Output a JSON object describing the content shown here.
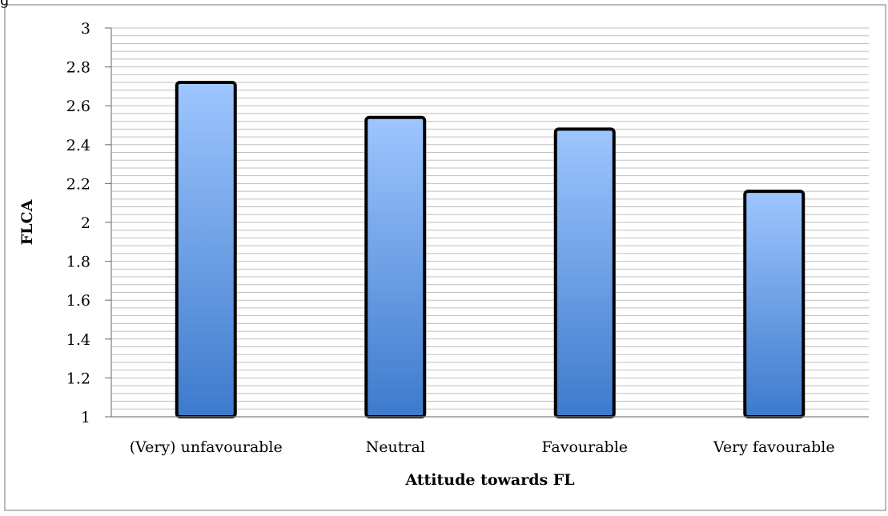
{
  "top_fragment": "g",
  "chart_data": {
    "type": "bar",
    "categories": [
      "(Very) unfavourable",
      "Neutral",
      "Favourable",
      "Very favourable"
    ],
    "values": [
      2.72,
      2.54,
      2.48,
      2.16
    ],
    "xlabel": "Attitude towards FL",
    "ylabel": "FLCA",
    "ylim": [
      1,
      3
    ],
    "yticks": [
      "1",
      "1.2",
      "1.4",
      "1.6",
      "1.8",
      "2",
      "2.2",
      "2.4",
      "2.6",
      "2.8",
      "3"
    ],
    "ytick_values": [
      1,
      1.2,
      1.4,
      1.6,
      1.8,
      2,
      2.2,
      2.4,
      2.6,
      2.8,
      3
    ],
    "minor_grid_step": 0.04,
    "grid": true,
    "legend": "none",
    "colors": {
      "bar_top": "#9ec6ff",
      "bar_bottom": "#3d7acc",
      "bar_outline": "#000000",
      "grid": "#bfbfbf"
    }
  }
}
